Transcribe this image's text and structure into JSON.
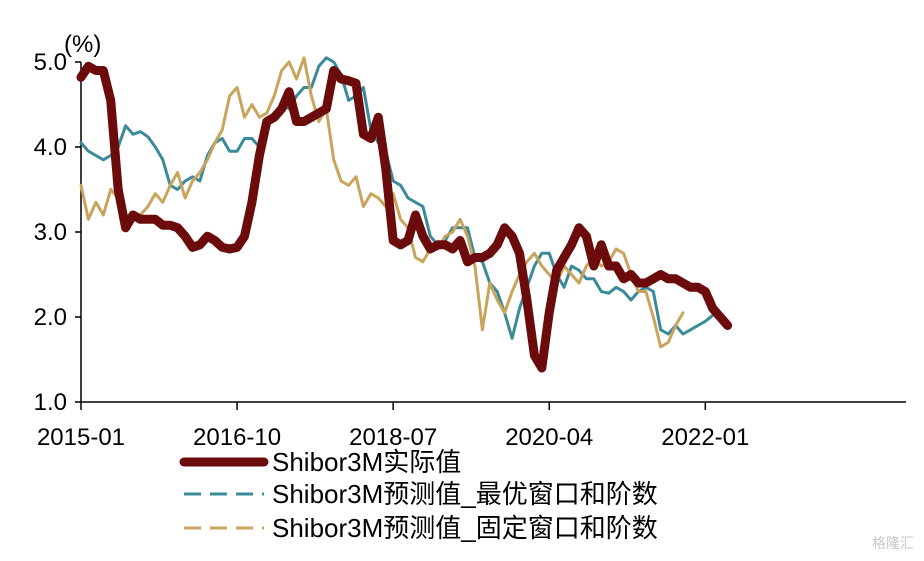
{
  "watermark": "格隆汇",
  "chart_data": {
    "type": "line",
    "unit": "(%)",
    "ylim": [
      1.0,
      5.0
    ],
    "y_ticks": [
      "1.0",
      "2.0",
      "3.0",
      "4.0",
      "5.0"
    ],
    "y_tick_values": [
      1.0,
      2.0,
      3.0,
      4.0,
      5.0
    ],
    "x_range": [
      "2015-01",
      "2024-04"
    ],
    "x_ticks": [
      "2015-01",
      "2016-10",
      "2018-07",
      "2020-04",
      "2022-01"
    ],
    "grid": false,
    "legend_position": "bottom-center",
    "series": [
      {
        "name": "Shibor3M实际值",
        "color": "#6b0b0b",
        "style": "solid-thick",
        "points": [
          [
            "2015-01",
            4.82
          ],
          [
            "2015-02",
            4.95
          ],
          [
            "2015-03",
            4.9
          ],
          [
            "2015-04",
            4.9
          ],
          [
            "2015-05",
            4.55
          ],
          [
            "2015-06",
            3.5
          ],
          [
            "2015-07",
            3.05
          ],
          [
            "2015-08",
            3.2
          ],
          [
            "2015-09",
            3.15
          ],
          [
            "2015-10",
            3.15
          ],
          [
            "2015-11",
            3.15
          ],
          [
            "2015-12",
            3.08
          ],
          [
            "2016-01",
            3.08
          ],
          [
            "2016-02",
            3.05
          ],
          [
            "2016-03",
            2.95
          ],
          [
            "2016-04",
            2.82
          ],
          [
            "2016-05",
            2.85
          ],
          [
            "2016-06",
            2.95
          ],
          [
            "2016-07",
            2.9
          ],
          [
            "2016-08",
            2.82
          ],
          [
            "2016-09",
            2.8
          ],
          [
            "2016-10",
            2.82
          ],
          [
            "2016-11",
            2.95
          ],
          [
            "2016-12",
            3.35
          ],
          [
            "2017-01",
            3.9
          ],
          [
            "2017-02",
            4.3
          ],
          [
            "2017-03",
            4.35
          ],
          [
            "2017-04",
            4.45
          ],
          [
            "2017-05",
            4.65
          ],
          [
            "2017-06",
            4.3
          ],
          [
            "2017-07",
            4.3
          ],
          [
            "2017-08",
            4.35
          ],
          [
            "2017-09",
            4.4
          ],
          [
            "2017-10",
            4.45
          ],
          [
            "2017-11",
            4.9
          ],
          [
            "2017-12",
            4.8
          ],
          [
            "2018-01",
            4.78
          ],
          [
            "2018-02",
            4.75
          ],
          [
            "2018-03",
            4.15
          ],
          [
            "2018-04",
            4.1
          ],
          [
            "2018-05",
            4.35
          ],
          [
            "2018-06",
            3.75
          ],
          [
            "2018-07",
            2.9
          ],
          [
            "2018-08",
            2.85
          ],
          [
            "2018-09",
            2.9
          ],
          [
            "2018-10",
            3.2
          ],
          [
            "2018-11",
            2.95
          ],
          [
            "2018-12",
            2.8
          ],
          [
            "2019-01",
            2.85
          ],
          [
            "2019-02",
            2.85
          ],
          [
            "2019-03",
            2.8
          ],
          [
            "2019-04",
            2.9
          ],
          [
            "2019-05",
            2.65
          ],
          [
            "2019-06",
            2.7
          ],
          [
            "2019-07",
            2.7
          ],
          [
            "2019-08",
            2.75
          ],
          [
            "2019-09",
            2.85
          ],
          [
            "2019-10",
            3.05
          ],
          [
            "2019-11",
            2.95
          ],
          [
            "2019-12",
            2.75
          ],
          [
            "2020-01",
            2.2
          ],
          [
            "2020-02",
            1.55
          ],
          [
            "2020-03",
            1.4
          ],
          [
            "2020-04",
            2.05
          ],
          [
            "2020-05",
            2.55
          ],
          [
            "2020-06",
            2.7
          ],
          [
            "2020-07",
            2.85
          ],
          [
            "2020-08",
            3.05
          ],
          [
            "2020-09",
            2.95
          ],
          [
            "2020-10",
            2.6
          ],
          [
            "2020-11",
            2.85
          ],
          [
            "2020-12",
            2.6
          ],
          [
            "2021-01",
            2.6
          ],
          [
            "2021-02",
            2.45
          ],
          [
            "2021-03",
            2.5
          ],
          [
            "2021-04",
            2.4
          ],
          [
            "2021-05",
            2.4
          ],
          [
            "2021-06",
            2.45
          ],
          [
            "2021-07",
            2.5
          ],
          [
            "2021-08",
            2.45
          ],
          [
            "2021-09",
            2.45
          ],
          [
            "2021-10",
            2.4
          ],
          [
            "2021-11",
            2.35
          ],
          [
            "2021-12",
            2.35
          ],
          [
            "2022-01",
            2.3
          ],
          [
            "2022-02",
            2.1
          ],
          [
            "2022-03",
            2.0
          ],
          [
            "2022-04",
            1.9
          ]
        ]
      },
      {
        "name": "Shibor3M预测值_最优窗口和阶数",
        "color": "#3a8a9a",
        "style": "solid-thin",
        "points": [
          [
            "2015-01",
            4.05
          ],
          [
            "2015-02",
            3.95
          ],
          [
            "2015-03",
            3.9
          ],
          [
            "2015-04",
            3.85
          ],
          [
            "2015-05",
            3.9
          ],
          [
            "2015-06",
            4.0
          ],
          [
            "2015-07",
            4.25
          ],
          [
            "2015-08",
            4.15
          ],
          [
            "2015-09",
            4.18
          ],
          [
            "2015-10",
            4.12
          ],
          [
            "2015-11",
            4.0
          ],
          [
            "2015-12",
            3.85
          ],
          [
            "2016-01",
            3.55
          ],
          [
            "2016-02",
            3.5
          ],
          [
            "2016-03",
            3.6
          ],
          [
            "2016-04",
            3.65
          ],
          [
            "2016-05",
            3.6
          ],
          [
            "2016-06",
            3.9
          ],
          [
            "2016-07",
            4.05
          ],
          [
            "2016-08",
            4.1
          ],
          [
            "2016-09",
            3.95
          ],
          [
            "2016-10",
            3.95
          ],
          [
            "2016-11",
            4.1
          ],
          [
            "2016-12",
            4.1
          ],
          [
            "2017-01",
            4.0
          ],
          [
            "2017-02",
            4.3
          ],
          [
            "2017-03",
            4.4
          ],
          [
            "2017-04",
            4.5
          ],
          [
            "2017-05",
            4.45
          ],
          [
            "2017-06",
            4.6
          ],
          [
            "2017-07",
            4.7
          ],
          [
            "2017-08",
            4.7
          ],
          [
            "2017-09",
            4.95
          ],
          [
            "2017-10",
            5.05
          ],
          [
            "2017-11",
            5.0
          ],
          [
            "2017-12",
            4.85
          ],
          [
            "2018-01",
            4.55
          ],
          [
            "2018-02",
            4.6
          ],
          [
            "2018-03",
            4.7
          ],
          [
            "2018-04",
            4.2
          ],
          [
            "2018-05",
            4.05
          ],
          [
            "2018-06",
            3.95
          ],
          [
            "2018-07",
            3.6
          ],
          [
            "2018-08",
            3.55
          ],
          [
            "2018-09",
            3.4
          ],
          [
            "2018-10",
            3.35
          ],
          [
            "2018-11",
            3.3
          ],
          [
            "2018-12",
            2.95
          ],
          [
            "2019-01",
            2.85
          ],
          [
            "2019-02",
            2.9
          ],
          [
            "2019-03",
            3.05
          ],
          [
            "2019-04",
            3.05
          ],
          [
            "2019-05",
            3.05
          ],
          [
            "2019-06",
            2.7
          ],
          [
            "2019-07",
            2.65
          ],
          [
            "2019-08",
            2.4
          ],
          [
            "2019-09",
            2.3
          ],
          [
            "2019-10",
            2.05
          ],
          [
            "2019-11",
            1.75
          ],
          [
            "2019-12",
            2.1
          ],
          [
            "2020-01",
            2.35
          ],
          [
            "2020-02",
            2.6
          ],
          [
            "2020-03",
            2.75
          ],
          [
            "2020-04",
            2.75
          ],
          [
            "2020-05",
            2.5
          ],
          [
            "2020-06",
            2.35
          ],
          [
            "2020-07",
            2.6
          ],
          [
            "2020-08",
            2.55
          ],
          [
            "2020-09",
            2.45
          ],
          [
            "2020-10",
            2.45
          ],
          [
            "2020-11",
            2.3
          ],
          [
            "2020-12",
            2.28
          ],
          [
            "2021-01",
            2.35
          ],
          [
            "2021-02",
            2.3
          ],
          [
            "2021-03",
            2.2
          ],
          [
            "2021-04",
            2.3
          ],
          [
            "2021-05",
            2.35
          ],
          [
            "2021-06",
            2.3
          ],
          [
            "2021-07",
            1.85
          ],
          [
            "2021-08",
            1.8
          ],
          [
            "2021-09",
            1.9
          ],
          [
            "2021-10",
            1.8
          ],
          [
            "2021-11",
            1.85
          ],
          [
            "2021-12",
            1.9
          ],
          [
            "2022-01",
            1.95
          ],
          [
            "2022-02",
            2.02
          ]
        ]
      },
      {
        "name": "Shibor3M预测值_固定窗口和阶数",
        "color": "#c9a45c",
        "style": "solid-thin",
        "points": [
          [
            "2015-01",
            3.55
          ],
          [
            "2015-02",
            3.15
          ],
          [
            "2015-03",
            3.35
          ],
          [
            "2015-04",
            3.2
          ],
          [
            "2015-05",
            3.5
          ],
          [
            "2015-06",
            3.4
          ],
          [
            "2015-07",
            3.2
          ],
          [
            "2015-08",
            3.15
          ],
          [
            "2015-09",
            3.2
          ],
          [
            "2015-10",
            3.3
          ],
          [
            "2015-11",
            3.45
          ],
          [
            "2015-12",
            3.35
          ],
          [
            "2016-01",
            3.55
          ],
          [
            "2016-02",
            3.7
          ],
          [
            "2016-03",
            3.4
          ],
          [
            "2016-04",
            3.6
          ],
          [
            "2016-05",
            3.7
          ],
          [
            "2016-06",
            3.85
          ],
          [
            "2016-07",
            4.05
          ],
          [
            "2016-08",
            4.2
          ],
          [
            "2016-09",
            4.6
          ],
          [
            "2016-10",
            4.7
          ],
          [
            "2016-11",
            4.35
          ],
          [
            "2016-12",
            4.5
          ],
          [
            "2017-01",
            4.35
          ],
          [
            "2017-02",
            4.4
          ],
          [
            "2017-03",
            4.6
          ],
          [
            "2017-04",
            4.9
          ],
          [
            "2017-05",
            5.0
          ],
          [
            "2017-06",
            4.8
          ],
          [
            "2017-07",
            5.05
          ],
          [
            "2017-08",
            4.6
          ],
          [
            "2017-09",
            4.3
          ],
          [
            "2017-10",
            4.45
          ],
          [
            "2017-11",
            3.85
          ],
          [
            "2017-12",
            3.6
          ],
          [
            "2018-01",
            3.55
          ],
          [
            "2018-02",
            3.65
          ],
          [
            "2018-03",
            3.3
          ],
          [
            "2018-04",
            3.45
          ],
          [
            "2018-05",
            3.4
          ],
          [
            "2018-06",
            3.3
          ],
          [
            "2018-07",
            3.45
          ],
          [
            "2018-08",
            3.15
          ],
          [
            "2018-09",
            3.05
          ],
          [
            "2018-10",
            2.7
          ],
          [
            "2018-11",
            2.65
          ],
          [
            "2018-12",
            2.8
          ],
          [
            "2019-01",
            2.8
          ],
          [
            "2019-02",
            2.95
          ],
          [
            "2019-03",
            3.0
          ],
          [
            "2019-04",
            3.15
          ],
          [
            "2019-05",
            2.95
          ],
          [
            "2019-06",
            2.6
          ],
          [
            "2019-07",
            1.85
          ],
          [
            "2019-08",
            2.4
          ],
          [
            "2019-09",
            2.2
          ],
          [
            "2019-10",
            2.05
          ],
          [
            "2019-11",
            2.3
          ],
          [
            "2019-12",
            2.5
          ],
          [
            "2020-01",
            2.65
          ],
          [
            "2020-02",
            2.75
          ],
          [
            "2020-03",
            2.6
          ],
          [
            "2020-04",
            2.5
          ],
          [
            "2020-05",
            2.4
          ],
          [
            "2020-06",
            2.6
          ],
          [
            "2020-07",
            2.5
          ],
          [
            "2020-08",
            2.4
          ],
          [
            "2020-09",
            2.6
          ],
          [
            "2020-10",
            2.7
          ],
          [
            "2020-11",
            2.6
          ],
          [
            "2020-12",
            2.65
          ],
          [
            "2021-01",
            2.8
          ],
          [
            "2021-02",
            2.75
          ],
          [
            "2021-03",
            2.5
          ],
          [
            "2021-04",
            2.3
          ],
          [
            "2021-05",
            2.3
          ],
          [
            "2021-06",
            2.0
          ],
          [
            "2021-07",
            1.65
          ],
          [
            "2021-08",
            1.7
          ],
          [
            "2021-09",
            1.9
          ],
          [
            "2021-10",
            2.05
          ]
        ]
      }
    ]
  }
}
